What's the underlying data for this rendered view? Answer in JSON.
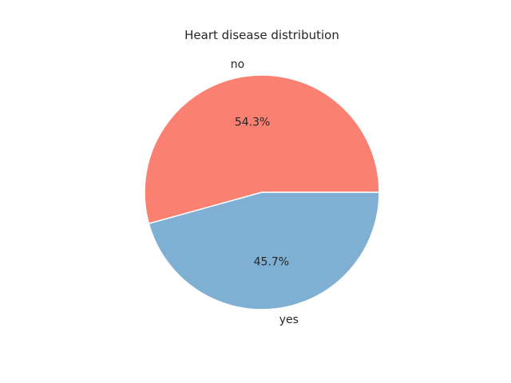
{
  "chart_data": {
    "type": "pie",
    "title": "Heart disease distribution",
    "slices": [
      {
        "label": "no",
        "value": 54.3,
        "pct_label": "54.3%",
        "color": "#fa8072"
      },
      {
        "label": "yes",
        "value": 45.7,
        "pct_label": "45.7%",
        "color": "#7fb0d3"
      }
    ],
    "start_angle_deg": 0,
    "direction": "counterclockwise",
    "wedge_edge_color": "#ffffff"
  }
}
